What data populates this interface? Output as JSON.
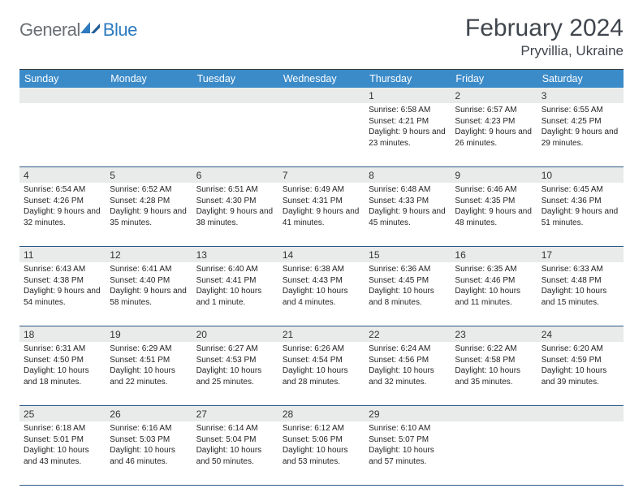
{
  "logo": {
    "text1": "General",
    "text2": "Blue"
  },
  "title": "February 2024",
  "location": "Pryvillia, Ukraine",
  "colors": {
    "header_bg": "#3b8bc9",
    "daynum_bg": "#e9eaea",
    "rule": "#2d5a87",
    "logo_gray": "#6b7076",
    "logo_blue": "#2f7bbf"
  },
  "day_names": [
    "Sunday",
    "Monday",
    "Tuesday",
    "Wednesday",
    "Thursday",
    "Friday",
    "Saturday"
  ],
  "weeks": [
    {
      "nums": [
        "",
        "",
        "",
        "",
        "1",
        "2",
        "3"
      ],
      "cells": [
        "",
        "",
        "",
        "",
        "Sunrise: 6:58 AM\nSunset: 4:21 PM\nDaylight: 9 hours and 23 minutes.",
        "Sunrise: 6:57 AM\nSunset: 4:23 PM\nDaylight: 9 hours and 26 minutes.",
        "Sunrise: 6:55 AM\nSunset: 4:25 PM\nDaylight: 9 hours and 29 minutes."
      ]
    },
    {
      "nums": [
        "4",
        "5",
        "6",
        "7",
        "8",
        "9",
        "10"
      ],
      "cells": [
        "Sunrise: 6:54 AM\nSunset: 4:26 PM\nDaylight: 9 hours and 32 minutes.",
        "Sunrise: 6:52 AM\nSunset: 4:28 PM\nDaylight: 9 hours and 35 minutes.",
        "Sunrise: 6:51 AM\nSunset: 4:30 PM\nDaylight: 9 hours and 38 minutes.",
        "Sunrise: 6:49 AM\nSunset: 4:31 PM\nDaylight: 9 hours and 41 minutes.",
        "Sunrise: 6:48 AM\nSunset: 4:33 PM\nDaylight: 9 hours and 45 minutes.",
        "Sunrise: 6:46 AM\nSunset: 4:35 PM\nDaylight: 9 hours and 48 minutes.",
        "Sunrise: 6:45 AM\nSunset: 4:36 PM\nDaylight: 9 hours and 51 minutes."
      ]
    },
    {
      "nums": [
        "11",
        "12",
        "13",
        "14",
        "15",
        "16",
        "17"
      ],
      "cells": [
        "Sunrise: 6:43 AM\nSunset: 4:38 PM\nDaylight: 9 hours and 54 minutes.",
        "Sunrise: 6:41 AM\nSunset: 4:40 PM\nDaylight: 9 hours and 58 minutes.",
        "Sunrise: 6:40 AM\nSunset: 4:41 PM\nDaylight: 10 hours and 1 minute.",
        "Sunrise: 6:38 AM\nSunset: 4:43 PM\nDaylight: 10 hours and 4 minutes.",
        "Sunrise: 6:36 AM\nSunset: 4:45 PM\nDaylight: 10 hours and 8 minutes.",
        "Sunrise: 6:35 AM\nSunset: 4:46 PM\nDaylight: 10 hours and 11 minutes.",
        "Sunrise: 6:33 AM\nSunset: 4:48 PM\nDaylight: 10 hours and 15 minutes."
      ]
    },
    {
      "nums": [
        "18",
        "19",
        "20",
        "21",
        "22",
        "23",
        "24"
      ],
      "cells": [
        "Sunrise: 6:31 AM\nSunset: 4:50 PM\nDaylight: 10 hours and 18 minutes.",
        "Sunrise: 6:29 AM\nSunset: 4:51 PM\nDaylight: 10 hours and 22 minutes.",
        "Sunrise: 6:27 AM\nSunset: 4:53 PM\nDaylight: 10 hours and 25 minutes.",
        "Sunrise: 6:26 AM\nSunset: 4:54 PM\nDaylight: 10 hours and 28 minutes.",
        "Sunrise: 6:24 AM\nSunset: 4:56 PM\nDaylight: 10 hours and 32 minutes.",
        "Sunrise: 6:22 AM\nSunset: 4:58 PM\nDaylight: 10 hours and 35 minutes.",
        "Sunrise: 6:20 AM\nSunset: 4:59 PM\nDaylight: 10 hours and 39 minutes."
      ]
    },
    {
      "nums": [
        "25",
        "26",
        "27",
        "28",
        "29",
        "",
        ""
      ],
      "cells": [
        "Sunrise: 6:18 AM\nSunset: 5:01 PM\nDaylight: 10 hours and 43 minutes.",
        "Sunrise: 6:16 AM\nSunset: 5:03 PM\nDaylight: 10 hours and 46 minutes.",
        "Sunrise: 6:14 AM\nSunset: 5:04 PM\nDaylight: 10 hours and 50 minutes.",
        "Sunrise: 6:12 AM\nSunset: 5:06 PM\nDaylight: 10 hours and 53 minutes.",
        "Sunrise: 6:10 AM\nSunset: 5:07 PM\nDaylight: 10 hours and 57 minutes.",
        "",
        ""
      ]
    }
  ]
}
